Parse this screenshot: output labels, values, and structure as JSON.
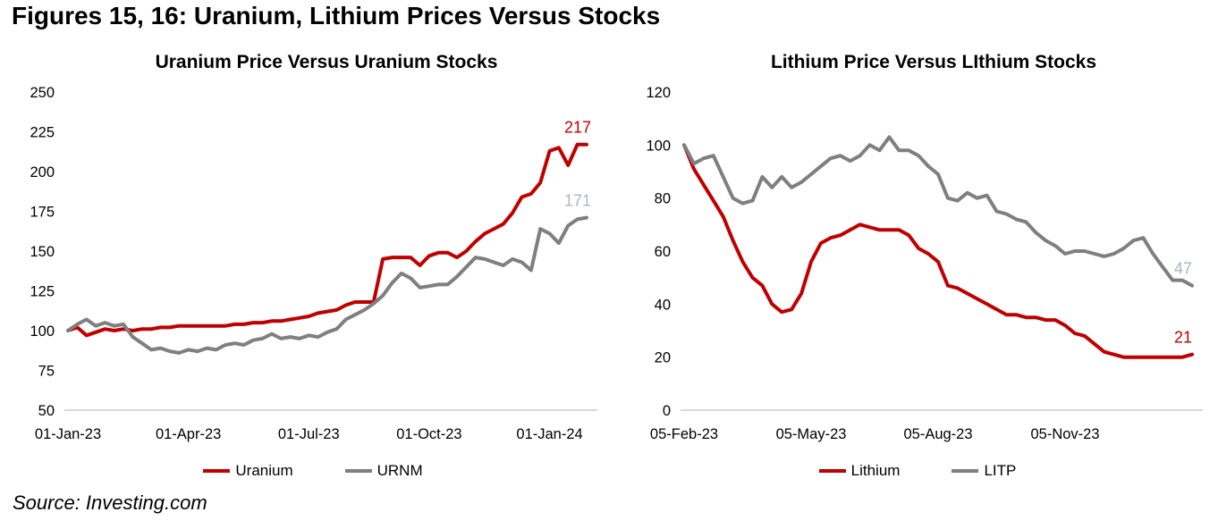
{
  "page": {
    "title": "Figures 15, 16: Uranium, Lithium Prices Versus Stocks",
    "source": "Source: Investing.com"
  },
  "colors": {
    "red": "#c00000",
    "gray": "#7f7f7f",
    "end_label_gray": "#a5b8c6",
    "axis_line": "#d9d9d9",
    "text": "#000000"
  },
  "chart_data": [
    {
      "type": "line",
      "title": "Uranium Price Versus Uranium Stocks",
      "xlabel": "",
      "ylabel": "",
      "ylim": [
        50,
        250
      ],
      "ytick_step": 25,
      "grid": false,
      "legend_position": "bottom",
      "x_tick_labels": [
        "01-Jan-23",
        "01-Apr-23",
        "01-Jul-23",
        "01-Oct-23",
        "01-Jan-24"
      ],
      "x_tick_indices": [
        0,
        13,
        26,
        39,
        52
      ],
      "series": [
        {
          "name": "Uranium",
          "color": "#c00000",
          "end_label": "217",
          "end_label_color": "#c00000",
          "values": [
            100,
            102,
            97,
            99,
            101,
            100,
            101,
            100,
            101,
            101,
            102,
            102,
            103,
            103,
            103,
            103,
            103,
            103,
            104,
            104,
            105,
            105,
            106,
            106,
            107,
            108,
            109,
            111,
            112,
            113,
            116,
            118,
            118,
            118,
            145,
            146,
            146,
            146,
            141,
            147,
            149,
            149,
            146,
            150,
            156,
            161,
            164,
            167,
            174,
            184,
            186,
            193,
            213,
            215,
            204,
            217,
            217
          ]
        },
        {
          "name": "URNM",
          "color": "#7f7f7f",
          "end_label": "171",
          "end_label_color": "#a5b8c6",
          "values": [
            100,
            104,
            107,
            103,
            105,
            103,
            104,
            96,
            92,
            88,
            89,
            87,
            86,
            88,
            87,
            89,
            88,
            91,
            92,
            91,
            94,
            95,
            98,
            95,
            96,
            95,
            97,
            96,
            99,
            101,
            107,
            110,
            113,
            117,
            122,
            130,
            136,
            133,
            127,
            128,
            129,
            129,
            134,
            140,
            146,
            145,
            143,
            141,
            145,
            143,
            138,
            164,
            161,
            155,
            166,
            170,
            171
          ]
        }
      ]
    },
    {
      "type": "line",
      "title": "Lithium Price Versus LIthium Stocks",
      "xlabel": "",
      "ylabel": "",
      "ylim": [
        0,
        120
      ],
      "ytick_step": 20,
      "grid": false,
      "legend_position": "bottom",
      "x_tick_labels": [
        "05-Feb-23",
        "05-May-23",
        "05-Aug-23",
        "05-Nov-23"
      ],
      "x_tick_indices": [
        0,
        13,
        26,
        39
      ],
      "series": [
        {
          "name": "Lithium",
          "color": "#c00000",
          "end_label": "21",
          "end_label_color": "#c00000",
          "values": [
            100,
            91,
            85,
            79,
            73,
            64,
            56,
            50,
            47,
            40,
            37,
            38,
            44,
            56,
            63,
            65,
            66,
            68,
            70,
            69,
            68,
            68,
            68,
            66,
            61,
            59,
            56,
            47,
            46,
            44,
            42,
            40,
            38,
            36,
            36,
            35,
            35,
            34,
            34,
            32,
            29,
            28,
            25,
            22,
            21,
            20,
            20,
            20,
            20,
            20,
            20,
            20,
            21
          ]
        },
        {
          "name": "LITP",
          "color": "#7f7f7f",
          "end_label": "47",
          "end_label_color": "#a5b8c6",
          "values": [
            100,
            93,
            95,
            96,
            88,
            80,
            78,
            79,
            88,
            84,
            88,
            84,
            86,
            89,
            92,
            95,
            96,
            94,
            96,
            100,
            98,
            103,
            98,
            98,
            96,
            92,
            89,
            80,
            79,
            82,
            80,
            81,
            75,
            74,
            72,
            71,
            67,
            64,
            62,
            59,
            60,
            60,
            59,
            58,
            59,
            61,
            64,
            65,
            59,
            54,
            49,
            49,
            47
          ]
        }
      ]
    }
  ]
}
